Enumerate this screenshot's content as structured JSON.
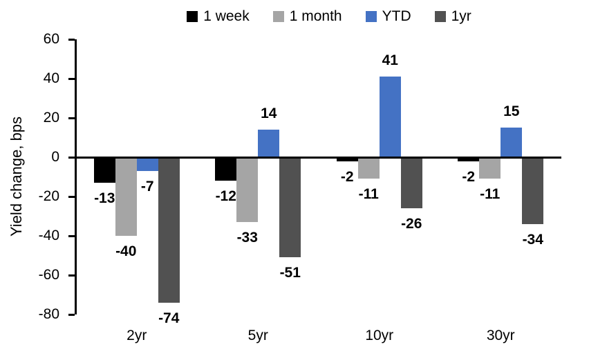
{
  "chart_data": {
    "type": "bar",
    "title": "",
    "xlabel": "",
    "ylabel": "Yield change, bps",
    "categories": [
      "2yr",
      "5yr",
      "10yr",
      "30yr"
    ],
    "series": [
      {
        "name": "1 week",
        "color": "#000000",
        "values": [
          -13,
          -12,
          -2,
          -2
        ]
      },
      {
        "name": "1 month",
        "color": "#A5A5A5",
        "values": [
          -40,
          -33,
          -11,
          -11
        ]
      },
      {
        "name": "YTD",
        "color": "#4472C4",
        "values": [
          -7,
          14,
          41,
          15
        ]
      },
      {
        "name": "1yr",
        "color": "#515151",
        "values": [
          -74,
          -51,
          -26,
          -34
        ]
      }
    ],
    "ylim": [
      -80,
      60
    ],
    "yticks": [
      60,
      40,
      20,
      0,
      -20,
      -40,
      -60,
      -80
    ],
    "grid": false,
    "legend_position": "top",
    "data_labels": true,
    "axis_color": "#000000"
  }
}
